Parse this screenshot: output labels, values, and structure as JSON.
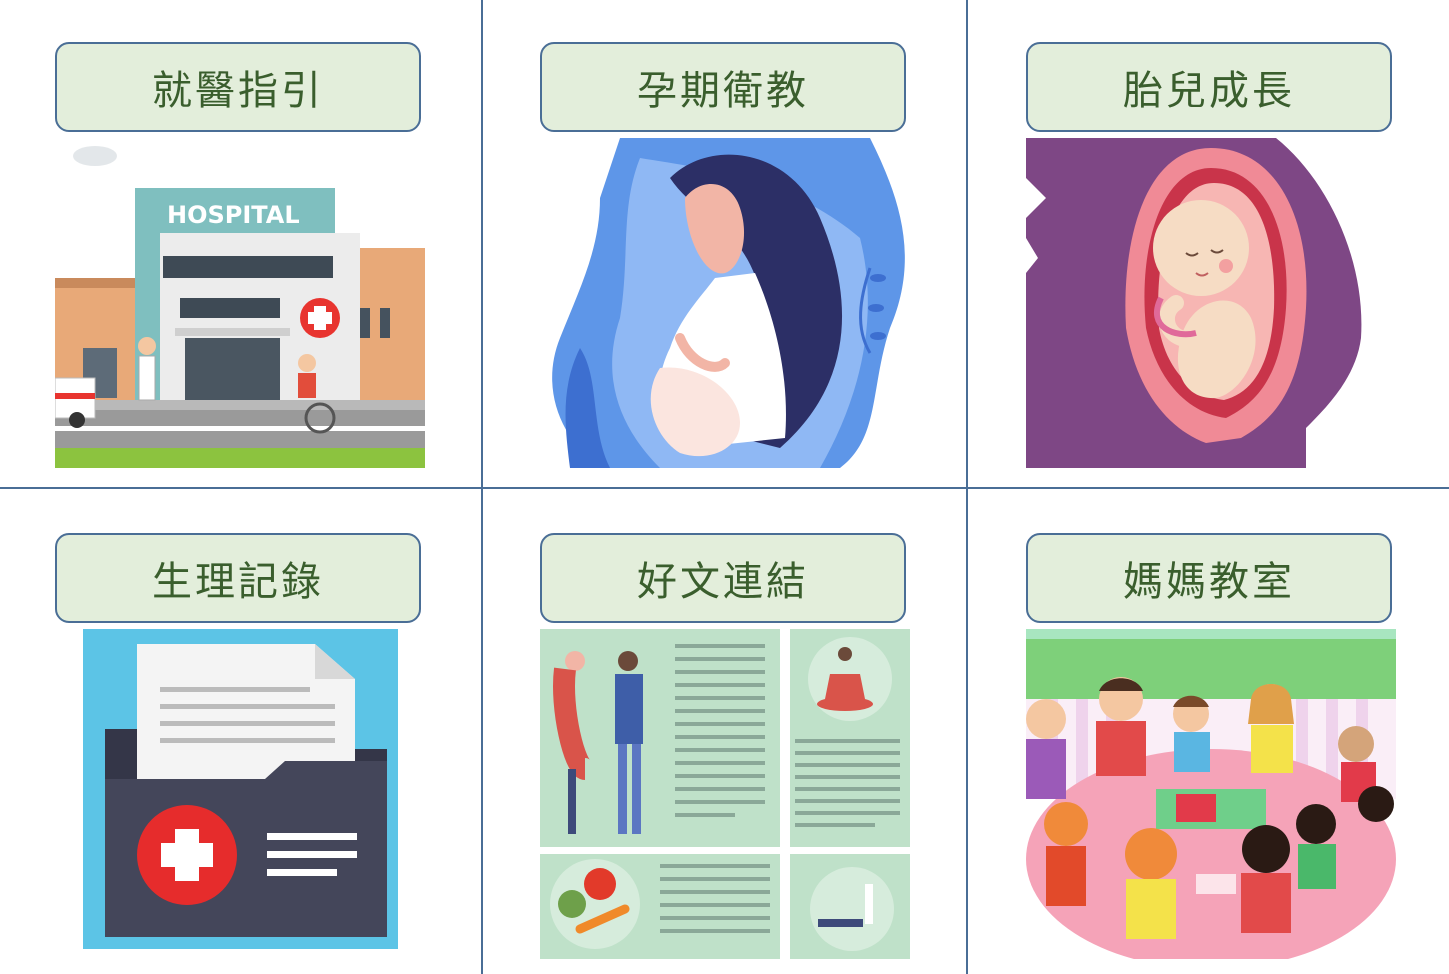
{
  "menu": {
    "items": [
      {
        "label": "就醫指引",
        "art": "hospital-building"
      },
      {
        "label": "孕期衛教",
        "art": "pregnant-woman"
      },
      {
        "label": "胎兒成長",
        "art": "fetus-in-womb"
      },
      {
        "label": "生理記錄",
        "art": "medical-record-folder"
      },
      {
        "label": "好文連結",
        "art": "article-infographic"
      },
      {
        "label": "媽媽教室",
        "art": "children-classroom"
      }
    ],
    "hospital_sign": "HOSPITAL"
  },
  "colors": {
    "label_bg": "#e3eedb",
    "label_border": "#4a6e96",
    "label_text": "#3a5e2d",
    "divider": "#4a6e96"
  }
}
